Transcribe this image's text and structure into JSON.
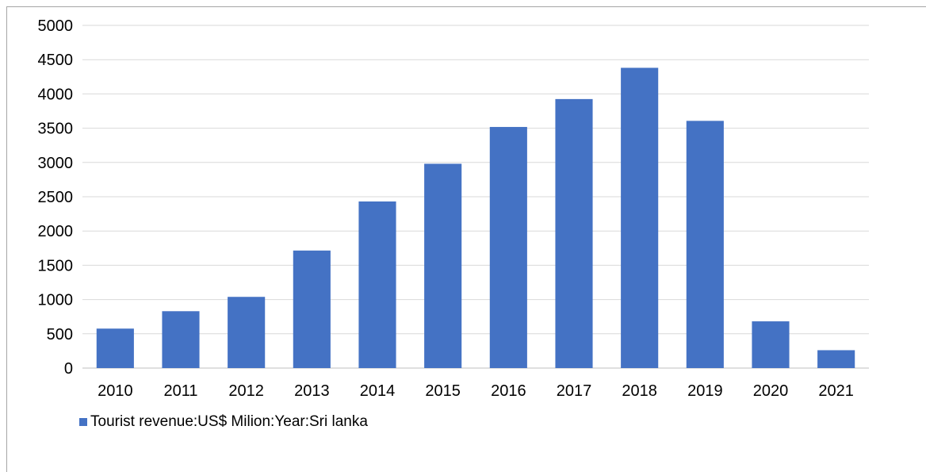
{
  "chart_data": {
    "type": "bar",
    "categories": [
      "2010",
      "2011",
      "2012",
      "2013",
      "2014",
      "2015",
      "2016",
      "2017",
      "2018",
      "2019",
      "2020",
      "2021"
    ],
    "series": [
      {
        "name": "Tourist revenue:US$ Milion:Year:Sri lanka",
        "color": "#4472c4",
        "values": [
          576,
          830,
          1039,
          1715,
          2431,
          2981,
          3518,
          3925,
          4381,
          3607,
          682,
          261
        ]
      }
    ],
    "title": "",
    "xlabel": "",
    "ylabel": "",
    "ylim": [
      0,
      5000
    ],
    "yticks": [
      "0",
      "500",
      "1000",
      "1500",
      "2000",
      "2500",
      "3000",
      "3500",
      "4000",
      "4500",
      "5000"
    ],
    "grid": true,
    "legend": "bottom-left"
  },
  "colors": {
    "bar": "#4472c4",
    "grid": "#d9d9d9",
    "axis": "#bfbfbf"
  }
}
